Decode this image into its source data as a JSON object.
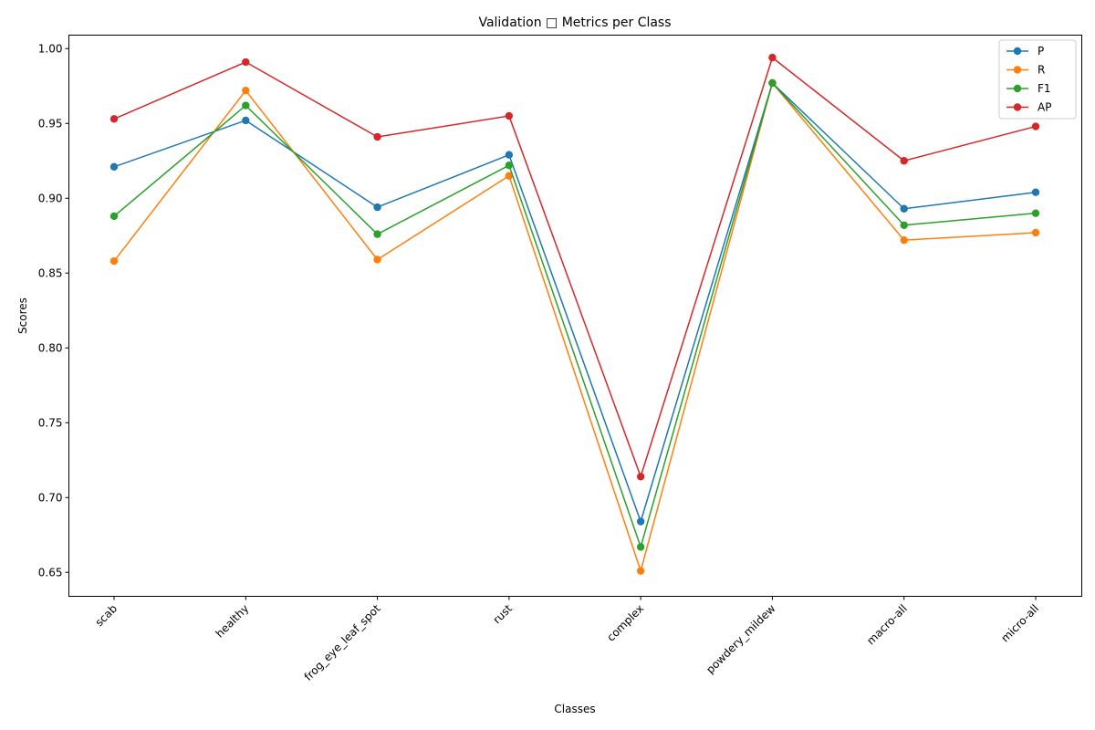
{
  "chart_data": {
    "type": "line",
    "title": "Validation □ Metrics per Class",
    "xlabel": "Classes",
    "ylabel": "Scores",
    "ylim": [
      0.634,
      1.009
    ],
    "yticks": [
      "0.65",
      "0.70",
      "0.75",
      "0.80",
      "0.85",
      "0.90",
      "0.95",
      "1.00"
    ],
    "ytick_values": [
      0.65,
      0.7,
      0.75,
      0.8,
      0.85,
      0.9,
      0.95,
      1.0
    ],
    "categories": [
      "scab",
      "healthy",
      "frog_eye_leaf_spot",
      "rust",
      "complex",
      "powdery_mildew",
      "macro-all",
      "micro-all"
    ],
    "grid": false,
    "legend_position": "top-right",
    "series": [
      {
        "name": "P",
        "color": "#1f77b4",
        "values": [
          0.921,
          0.952,
          0.894,
          0.929,
          0.684,
          0.977,
          0.893,
          0.904
        ]
      },
      {
        "name": "R",
        "color": "#ff7f0e",
        "values": [
          0.858,
          0.972,
          0.859,
          0.915,
          0.651,
          0.977,
          0.872,
          0.877
        ]
      },
      {
        "name": "F1",
        "color": "#2ca02c",
        "values": [
          0.888,
          0.962,
          0.876,
          0.922,
          0.667,
          0.977,
          0.882,
          0.89
        ]
      },
      {
        "name": "AP",
        "color": "#d62728",
        "values": [
          0.953,
          0.991,
          0.941,
          0.955,
          0.714,
          0.994,
          0.925,
          0.948
        ]
      }
    ]
  }
}
